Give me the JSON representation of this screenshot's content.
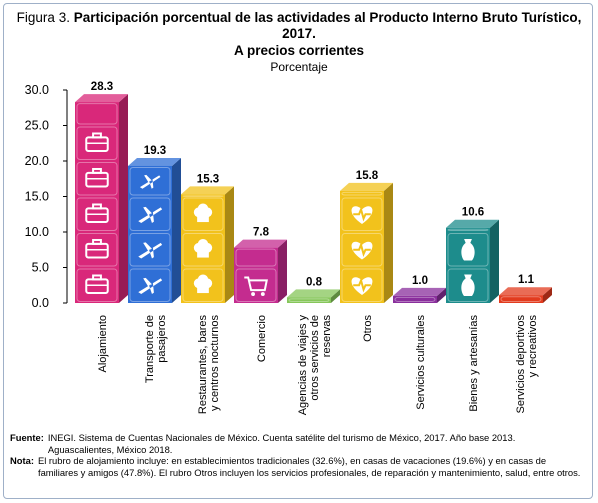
{
  "figure": {
    "prefix": "Figura 3.",
    "title": "Participación porcentual de las actividades al Producto Interno Bruto Turístico, 2017.",
    "subtitle": "A precios corrientes",
    "unit": "Porcentaje"
  },
  "chart_data": {
    "type": "bar",
    "categories": [
      "Alojamiento",
      "Transporte de pasajeros",
      "Restaurantes, bares y centros nocturnos",
      "Comercio",
      "Agencias de viajes y otros servicios de reservas",
      "Otros",
      "Servicios culturales",
      "Bienes y artesanías",
      "Servicios deportivos y recreativos"
    ],
    "values": [
      28.3,
      19.3,
      15.3,
      7.8,
      0.8,
      15.8,
      1.0,
      10.6,
      1.1
    ],
    "value_labels": [
      "28.3",
      "19.3",
      "15.3",
      "7.8",
      "0.8",
      "15.8",
      "1.0",
      "10.6",
      "1.1"
    ],
    "yticks": [
      "0.0",
      "5.0",
      "10.0",
      "15.0",
      "20.0",
      "25.0",
      "30.0"
    ],
    "ylim": [
      0,
      30
    ],
    "colors": [
      "#d9287a",
      "#2f6fd6",
      "#f2c21c",
      "#c42c8f",
      "#86c65a",
      "#f2c21c",
      "#8a2f9c",
      "#1d8c8c",
      "#e23b1e"
    ],
    "icons": [
      "suitcase-icon",
      "airplane-icon",
      "chef-hat-icon",
      "shopping-cart-icon",
      "ticket-icon",
      "heart-pulse-icon",
      "theater-icon",
      "vase-icon",
      "sports-icon"
    ],
    "grid": false,
    "legend": "none"
  },
  "notes": {
    "source_label": "Fuente:",
    "source_text": "INEGI. Sistema de Cuentas Nacionales de México. Cuenta satélite del turismo de México, 2017. Año base 2013. Aguascalientes, México 2018.",
    "note_label": "Nota:",
    "note_text": "El rubro de alojamiento incluye: en establecimientos tradicionales (32.6%), en casas de vacaciones (19.6%) y en casas de familiares y amigos (47.8%). El rubro Otros incluyen los servicios profesionales, de reparación y mantenimiento, salud, entre otros."
  }
}
